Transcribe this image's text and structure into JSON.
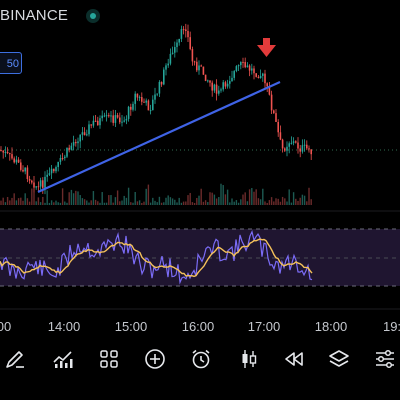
{
  "header": {
    "exchange": "BINANCE",
    "status_color": "#26a69a"
  },
  "price_tag": "50",
  "time_axis": [
    "00",
    "14:00",
    "15:00",
    "16:00",
    "17:00",
    "18:00",
    "19:"
  ],
  "annotation": {
    "marker": "down-arrow",
    "color": "#e23b3b"
  },
  "colors": {
    "up": "#26a69a",
    "down": "#ef5350",
    "trendline": "#3f63e6",
    "rsi_line": "#7b6cf6",
    "rsi_ma": "#f4c15a",
    "rsi_band": "#1f1530"
  },
  "toolbar": [
    {
      "icon": "pencil-icon"
    },
    {
      "icon": "indicators-icon"
    },
    {
      "icon": "grid-icon"
    },
    {
      "icon": "add-circle-icon"
    },
    {
      "icon": "alarm-icon"
    },
    {
      "icon": "candles-icon"
    },
    {
      "icon": "rewind-icon"
    },
    {
      "icon": "layers-icon"
    },
    {
      "icon": "settings-sliders-icon"
    }
  ]
}
